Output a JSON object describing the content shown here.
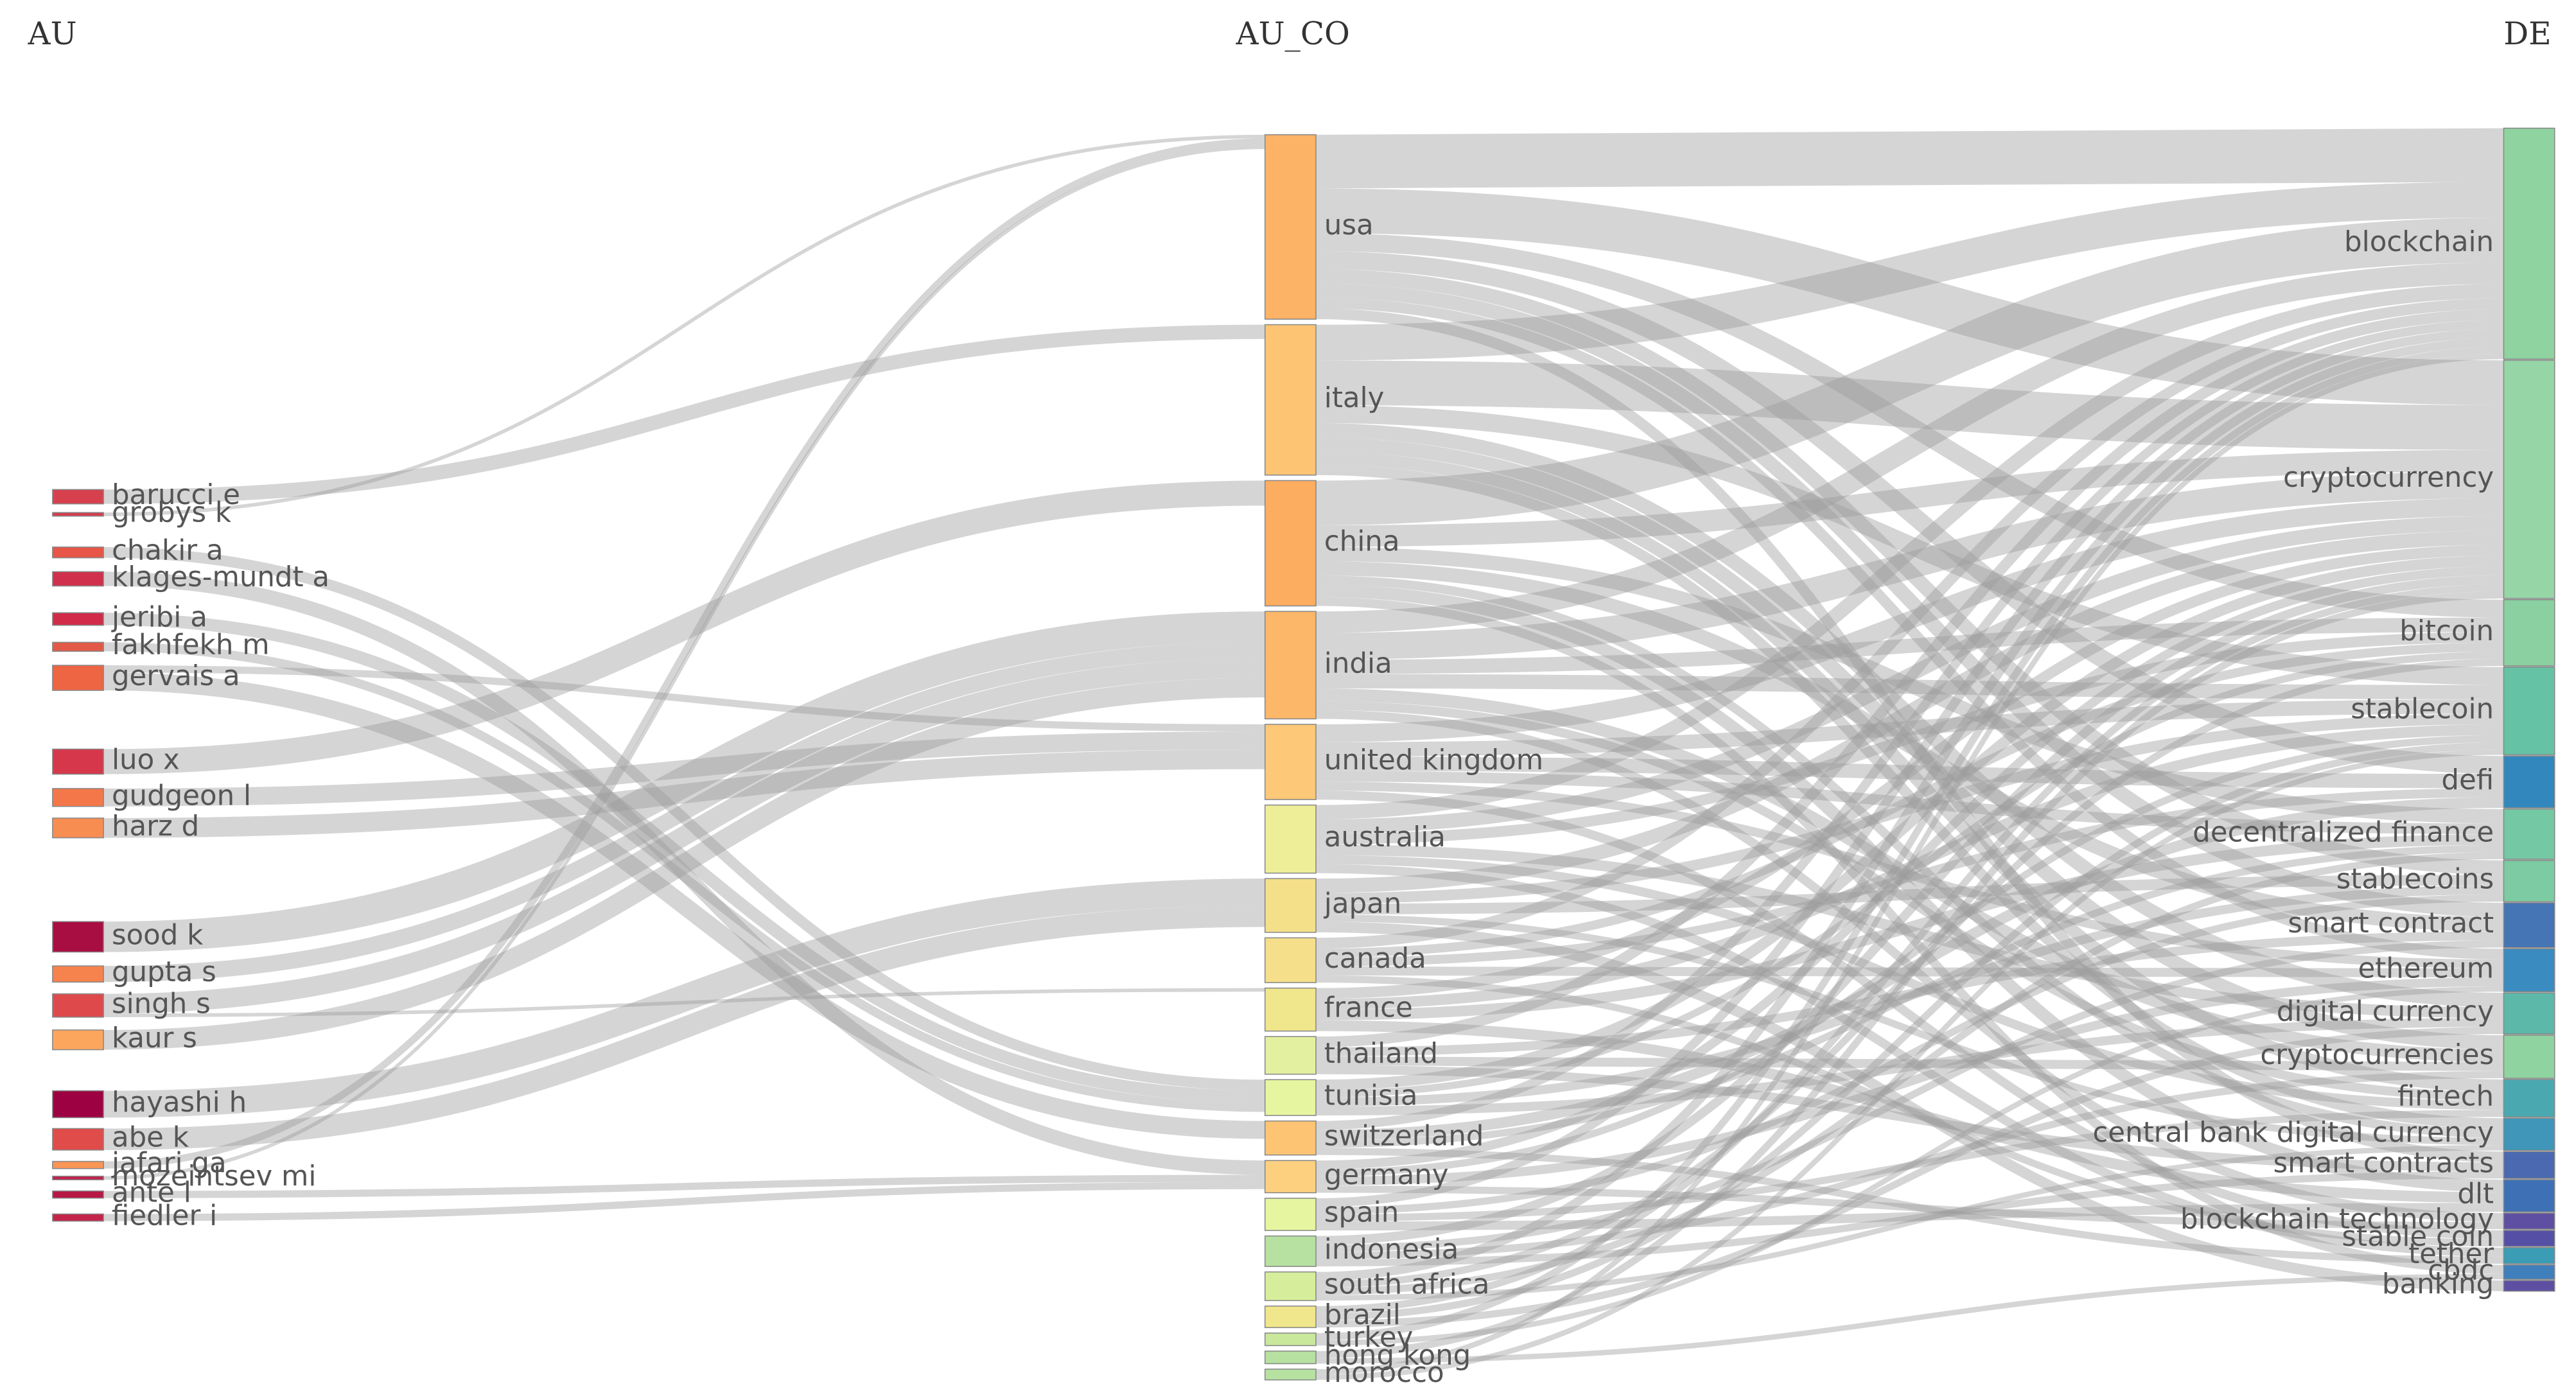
{
  "chart_data": {
    "type": "sankey",
    "columns": [
      {
        "title": "AU",
        "nodes": [
          {
            "name": "barucci e",
            "color": "#d7414e",
            "targets": [
              1
            ],
            "values": [
              8
            ]
          },
          {
            "name": "grobys k",
            "color": "#d53e4f",
            "targets": [
              0
            ],
            "values": [
              2
            ]
          },
          {
            "name": "chakir a",
            "color": "#e75646",
            "targets": [
              10
            ],
            "values": [
              6
            ]
          },
          {
            "name": "klages-mundt a",
            "color": "#d0304c",
            "targets": [
              12
            ],
            "values": [
              8
            ]
          },
          {
            "name": "jeribi a",
            "color": "#d02c4a",
            "targets": [
              10
            ],
            "values": [
              7
            ]
          },
          {
            "name": "fakhfekh m",
            "color": "#e25a47",
            "targets": [
              10
            ],
            "values": [
              5
            ]
          },
          {
            "name": "gervais a",
            "color": "#ee6544",
            "targets": [
              4,
              11
            ],
            "values": [
              4,
              10
            ]
          },
          {
            "name": "luo x",
            "color": "#d6374a",
            "targets": [
              2
            ],
            "values": [
              14
            ]
          },
          {
            "name": "gudgeon l",
            "color": "#f4774a",
            "targets": [
              4
            ],
            "values": [
              10
            ]
          },
          {
            "name": "harz d",
            "color": "#f88d52",
            "targets": [
              4
            ],
            "values": [
              11
            ]
          },
          {
            "name": "sood k",
            "color": "#a80e42",
            "targets": [
              3
            ],
            "values": [
              17
            ]
          },
          {
            "name": "gupta s",
            "color": "#f6824d",
            "targets": [
              3
            ],
            "values": [
              9
            ]
          },
          {
            "name": "singh s",
            "color": "#de4a4c",
            "targets": [
              3,
              8
            ],
            "values": [
              11,
              2
            ]
          },
          {
            "name": "kaur s",
            "color": "#fca55d",
            "targets": [
              3
            ],
            "values": [
              11
            ]
          },
          {
            "name": "hayashi h",
            "color": "#9e0142",
            "targets": [
              6
            ],
            "values": [
              15
            ]
          },
          {
            "name": "abe k",
            "color": "#e04c4a",
            "targets": [
              6
            ],
            "values": [
              12
            ]
          },
          {
            "name": "jafari ga",
            "color": "#f99555",
            "targets": [
              0
            ],
            "values": [
              4
            ]
          },
          {
            "name": "mozeintsev mi",
            "color": "#c0204a",
            "targets": [
              0
            ],
            "values": [
              2
            ]
          },
          {
            "name": "ante l",
            "color": "#b81846",
            "targets": [
              12
            ],
            "values": [
              4
            ]
          },
          {
            "name": "fiedler i",
            "color": "#c42449",
            "targets": [
              12
            ],
            "values": [
              4
            ]
          }
        ]
      },
      {
        "title": "AU_CO",
        "nodes": [
          {
            "name": "usa",
            "color": "#fdb366",
            "targets": [
              0,
              1,
              2,
              4,
              6,
              7,
              8,
              13
            ],
            "values": [
              30,
              25,
              10,
              10,
              8,
              8,
              6,
              6
            ]
          },
          {
            "name": "italy",
            "color": "#fdc474",
            "targets": [
              0,
              1,
              3,
              9,
              10,
              11,
              12
            ],
            "values": [
              20,
              25,
              10,
              8,
              8,
              7,
              6
            ]
          },
          {
            "name": "china",
            "color": "#fdad60",
            "targets": [
              0,
              1,
              5,
              7,
              12,
              14,
              18
            ],
            "values": [
              25,
              12,
              8,
              8,
              5,
              7,
              5
            ]
          },
          {
            "name": "india",
            "color": "#fdb768",
            "targets": [
              0,
              1,
              2,
              3,
              10,
              11,
              15
            ],
            "values": [
              12,
              15,
              8,
              8,
              7,
              5,
              5
            ]
          },
          {
            "name": "united kingdom",
            "color": "#fdc878",
            "targets": [
              1,
              3,
              4,
              5,
              8,
              16
            ],
            "values": [
              10,
              8,
              8,
              6,
              5,
              5
            ]
          },
          {
            "name": "australia",
            "color": "#eeee99",
            "targets": [
              0,
              1,
              2,
              9,
              11,
              17
            ],
            "values": [
              8,
              8,
              6,
              6,
              5,
              5
            ]
          },
          {
            "name": "japan",
            "color": "#f5e08a",
            "targets": [
              1,
              3,
              6,
              12,
              19
            ],
            "values": [
              8,
              6,
              6,
              4,
              6
            ]
          },
          {
            "name": "canada",
            "color": "#f5df8a",
            "targets": [
              0,
              2,
              4,
              8,
              16
            ],
            "values": [
              6,
              5,
              5,
              5,
              4
            ]
          },
          {
            "name": "france",
            "color": "#f0e68c",
            "targets": [
              1,
              3,
              5,
              14
            ],
            "values": [
              6,
              6,
              6,
              6
            ]
          },
          {
            "name": "thailand",
            "color": "#e2f0a0",
            "targets": [
              0,
              7,
              10,
              13
            ],
            "values": [
              6,
              5,
              5,
              5
            ]
          },
          {
            "name": "tunisia",
            "color": "#e6f5a0",
            "targets": [
              1,
              2,
              6,
              9
            ],
            "values": [
              6,
              4,
              5,
              5
            ]
          },
          {
            "name": "switzerland",
            "color": "#fdc474",
            "targets": [
              0,
              4,
              5,
              17
            ],
            "values": [
              5,
              6,
              4,
              4
            ]
          },
          {
            "name": "germany",
            "color": "#fdd080",
            "targets": [
              1,
              3,
              8,
              15
            ],
            "values": [
              5,
              4,
              5,
              4
            ]
          },
          {
            "name": "spain",
            "color": "#e6f5a0",
            "targets": [
              0,
              6,
              11,
              14
            ],
            "values": [
              5,
              4,
              4,
              5
            ]
          },
          {
            "name": "indonesia",
            "color": "#b7e1a1",
            "targets": [
              1,
              7,
              10,
              13
            ],
            "values": [
              5,
              4,
              4,
              4
            ]
          },
          {
            "name": "south africa",
            "color": "#d6ee9b",
            "targets": [
              0,
              2,
              5,
              12
            ],
            "values": [
              5,
              4,
              4,
              3
            ]
          },
          {
            "name": "brazil",
            "color": "#f0e68c",
            "targets": [
              1,
              3,
              9
            ],
            "values": [
              4,
              4,
              4
            ]
          },
          {
            "name": "turkey",
            "color": "#c9e89c",
            "targets": [
              0,
              8
            ],
            "values": [
              4,
              3
            ]
          },
          {
            "name": "hong kong",
            "color": "#b7e1a1",
            "targets": [
              1,
              18
            ],
            "values": [
              4,
              3
            ]
          },
          {
            "name": "morocco",
            "color": "#b7e1a1",
            "targets": [
              0,
              3
            ],
            "values": [
              3,
              3
            ]
          }
        ]
      },
      {
        "title": "DE",
        "nodes": [
          {
            "name": "blockchain",
            "color": "#8fd3a0"
          },
          {
            "name": "cryptocurrency",
            "color": "#96d5a5"
          },
          {
            "name": "bitcoin",
            "color": "#8ad0a0"
          },
          {
            "name": "stablecoin",
            "color": "#66c2a5"
          },
          {
            "name": "defi",
            "color": "#3288bd"
          },
          {
            "name": "decentralized finance",
            "color": "#74c8a3"
          },
          {
            "name": "stablecoins",
            "color": "#7ccba2"
          },
          {
            "name": "smart contract",
            "color": "#4575b4"
          },
          {
            "name": "ethereum",
            "color": "#3a8cc0"
          },
          {
            "name": "digital currency",
            "color": "#5cb8a8"
          },
          {
            "name": "cryptocurrencies",
            "color": "#8fd3a0"
          },
          {
            "name": "fintech",
            "color": "#4aa8b0"
          },
          {
            "name": "central bank digital currency",
            "color": "#3f96b8"
          },
          {
            "name": "smart contracts",
            "color": "#4a69b0"
          },
          {
            "name": "dlt",
            "color": "#3e70b5"
          },
          {
            "name": "blockchain technology",
            "color": "#5e4fa2"
          },
          {
            "name": "stable coin",
            "color": "#5550a5"
          },
          {
            "name": "tether",
            "color": "#3a9db5"
          },
          {
            "name": "cbdc",
            "color": "#3f7fbb"
          },
          {
            "name": "banking",
            "color": "#5e4fa2"
          }
        ]
      }
    ]
  }
}
